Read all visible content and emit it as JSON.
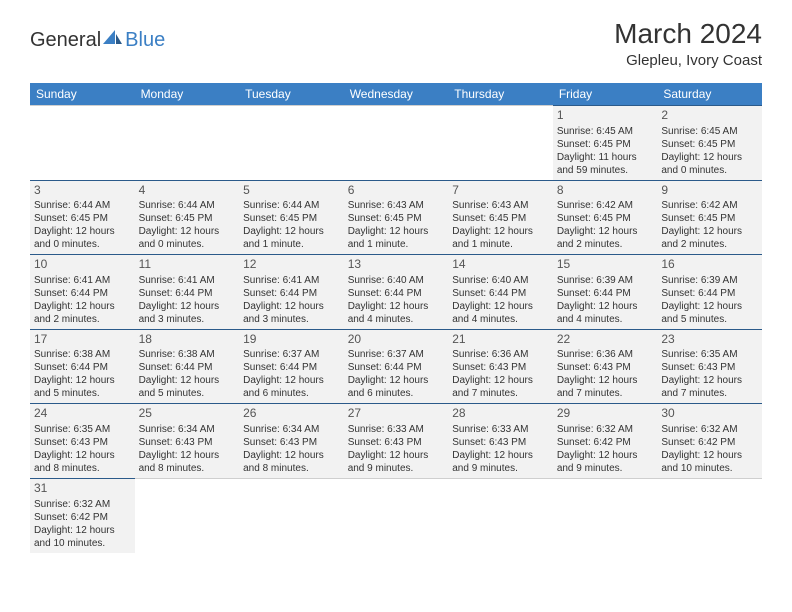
{
  "logo": {
    "text1": "General",
    "text2": "Blue",
    "color1": "#333333",
    "color2": "#3b7fc4"
  },
  "title": "March 2024",
  "location": "Glepleu, Ivory Coast",
  "colors": {
    "header_bg": "#3b7fc4",
    "header_fg": "#ffffff",
    "cell_bg": "#f2f2f2",
    "row_border": "#2b5a8a",
    "text": "#333333"
  },
  "dow": [
    "Sunday",
    "Monday",
    "Tuesday",
    "Wednesday",
    "Thursday",
    "Friday",
    "Saturday"
  ],
  "weeks": [
    [
      null,
      null,
      null,
      null,
      null,
      {
        "n": "1",
        "sr": "Sunrise: 6:45 AM",
        "ss": "Sunset: 6:45 PM",
        "dl": "Daylight: 11 hours and 59 minutes."
      },
      {
        "n": "2",
        "sr": "Sunrise: 6:45 AM",
        "ss": "Sunset: 6:45 PM",
        "dl": "Daylight: 12 hours and 0 minutes."
      }
    ],
    [
      {
        "n": "3",
        "sr": "Sunrise: 6:44 AM",
        "ss": "Sunset: 6:45 PM",
        "dl": "Daylight: 12 hours and 0 minutes."
      },
      {
        "n": "4",
        "sr": "Sunrise: 6:44 AM",
        "ss": "Sunset: 6:45 PM",
        "dl": "Daylight: 12 hours and 0 minutes."
      },
      {
        "n": "5",
        "sr": "Sunrise: 6:44 AM",
        "ss": "Sunset: 6:45 PM",
        "dl": "Daylight: 12 hours and 1 minute."
      },
      {
        "n": "6",
        "sr": "Sunrise: 6:43 AM",
        "ss": "Sunset: 6:45 PM",
        "dl": "Daylight: 12 hours and 1 minute."
      },
      {
        "n": "7",
        "sr": "Sunrise: 6:43 AM",
        "ss": "Sunset: 6:45 PM",
        "dl": "Daylight: 12 hours and 1 minute."
      },
      {
        "n": "8",
        "sr": "Sunrise: 6:42 AM",
        "ss": "Sunset: 6:45 PM",
        "dl": "Daylight: 12 hours and 2 minutes."
      },
      {
        "n": "9",
        "sr": "Sunrise: 6:42 AM",
        "ss": "Sunset: 6:45 PM",
        "dl": "Daylight: 12 hours and 2 minutes."
      }
    ],
    [
      {
        "n": "10",
        "sr": "Sunrise: 6:41 AM",
        "ss": "Sunset: 6:44 PM",
        "dl": "Daylight: 12 hours and 2 minutes."
      },
      {
        "n": "11",
        "sr": "Sunrise: 6:41 AM",
        "ss": "Sunset: 6:44 PM",
        "dl": "Daylight: 12 hours and 3 minutes."
      },
      {
        "n": "12",
        "sr": "Sunrise: 6:41 AM",
        "ss": "Sunset: 6:44 PM",
        "dl": "Daylight: 12 hours and 3 minutes."
      },
      {
        "n": "13",
        "sr": "Sunrise: 6:40 AM",
        "ss": "Sunset: 6:44 PM",
        "dl": "Daylight: 12 hours and 4 minutes."
      },
      {
        "n": "14",
        "sr": "Sunrise: 6:40 AM",
        "ss": "Sunset: 6:44 PM",
        "dl": "Daylight: 12 hours and 4 minutes."
      },
      {
        "n": "15",
        "sr": "Sunrise: 6:39 AM",
        "ss": "Sunset: 6:44 PM",
        "dl": "Daylight: 12 hours and 4 minutes."
      },
      {
        "n": "16",
        "sr": "Sunrise: 6:39 AM",
        "ss": "Sunset: 6:44 PM",
        "dl": "Daylight: 12 hours and 5 minutes."
      }
    ],
    [
      {
        "n": "17",
        "sr": "Sunrise: 6:38 AM",
        "ss": "Sunset: 6:44 PM",
        "dl": "Daylight: 12 hours and 5 minutes."
      },
      {
        "n": "18",
        "sr": "Sunrise: 6:38 AM",
        "ss": "Sunset: 6:44 PM",
        "dl": "Daylight: 12 hours and 5 minutes."
      },
      {
        "n": "19",
        "sr": "Sunrise: 6:37 AM",
        "ss": "Sunset: 6:44 PM",
        "dl": "Daylight: 12 hours and 6 minutes."
      },
      {
        "n": "20",
        "sr": "Sunrise: 6:37 AM",
        "ss": "Sunset: 6:44 PM",
        "dl": "Daylight: 12 hours and 6 minutes."
      },
      {
        "n": "21",
        "sr": "Sunrise: 6:36 AM",
        "ss": "Sunset: 6:43 PM",
        "dl": "Daylight: 12 hours and 7 minutes."
      },
      {
        "n": "22",
        "sr": "Sunrise: 6:36 AM",
        "ss": "Sunset: 6:43 PM",
        "dl": "Daylight: 12 hours and 7 minutes."
      },
      {
        "n": "23",
        "sr": "Sunrise: 6:35 AM",
        "ss": "Sunset: 6:43 PM",
        "dl": "Daylight: 12 hours and 7 minutes."
      }
    ],
    [
      {
        "n": "24",
        "sr": "Sunrise: 6:35 AM",
        "ss": "Sunset: 6:43 PM",
        "dl": "Daylight: 12 hours and 8 minutes."
      },
      {
        "n": "25",
        "sr": "Sunrise: 6:34 AM",
        "ss": "Sunset: 6:43 PM",
        "dl": "Daylight: 12 hours and 8 minutes."
      },
      {
        "n": "26",
        "sr": "Sunrise: 6:34 AM",
        "ss": "Sunset: 6:43 PM",
        "dl": "Daylight: 12 hours and 8 minutes."
      },
      {
        "n": "27",
        "sr": "Sunrise: 6:33 AM",
        "ss": "Sunset: 6:43 PM",
        "dl": "Daylight: 12 hours and 9 minutes."
      },
      {
        "n": "28",
        "sr": "Sunrise: 6:33 AM",
        "ss": "Sunset: 6:43 PM",
        "dl": "Daylight: 12 hours and 9 minutes."
      },
      {
        "n": "29",
        "sr": "Sunrise: 6:32 AM",
        "ss": "Sunset: 6:42 PM",
        "dl": "Daylight: 12 hours and 9 minutes."
      },
      {
        "n": "30",
        "sr": "Sunrise: 6:32 AM",
        "ss": "Sunset: 6:42 PM",
        "dl": "Daylight: 12 hours and 10 minutes."
      }
    ],
    [
      {
        "n": "31",
        "sr": "Sunrise: 6:32 AM",
        "ss": "Sunset: 6:42 PM",
        "dl": "Daylight: 12 hours and 10 minutes."
      },
      null,
      null,
      null,
      null,
      null,
      null
    ]
  ]
}
